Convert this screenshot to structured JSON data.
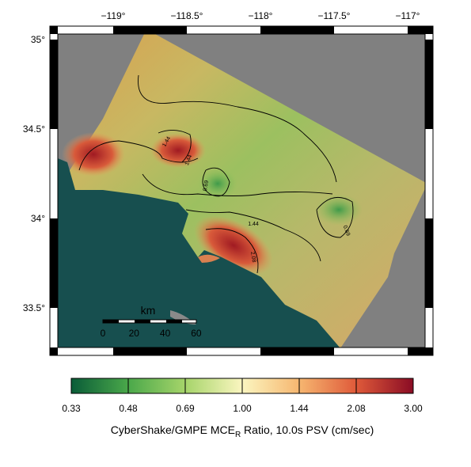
{
  "map": {
    "lon_ticks": [
      "−119°",
      "−118.5°",
      "−118°",
      "−117.5°",
      "−117°"
    ],
    "lat_ticks": [
      "35°",
      "34.5°",
      "34°",
      "33.5°"
    ],
    "scale_bar": {
      "unit": "km",
      "labels": [
        "0",
        "20",
        "40",
        "60"
      ]
    },
    "contour_labels": [
      "1.44",
      "1.44",
      "0.69",
      "1.44",
      "2.08",
      "0.69"
    ]
  },
  "colorbar": {
    "labels": [
      "0.33",
      "0.48",
      "0.69",
      "1.00",
      "1.44",
      "2.08",
      "3.00"
    ],
    "caption": {
      "main": "CyberShake/GMPE MCE",
      "subscript": "R",
      "rest": " Ratio, 10.0s PSV (cm/sec)"
    }
  }
}
